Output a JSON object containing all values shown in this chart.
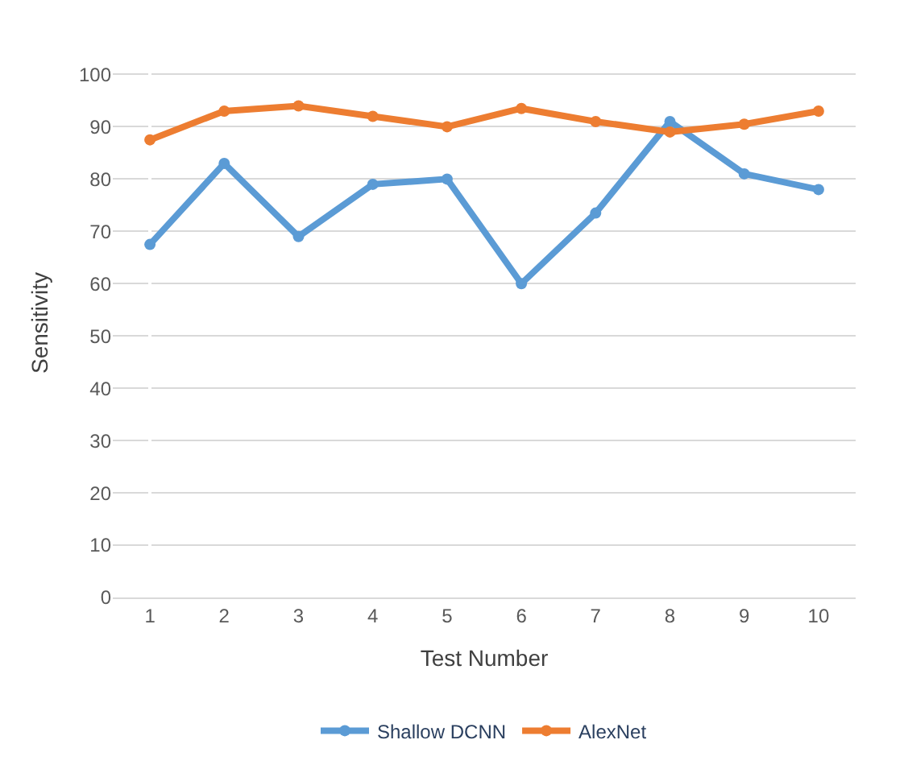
{
  "chart_data": {
    "type": "line",
    "xlabel": "Test Number",
    "ylabel": "Sensitivity",
    "categories": [
      "1",
      "2",
      "3",
      "4",
      "5",
      "6",
      "7",
      "8",
      "9",
      "10"
    ],
    "series": [
      {
        "name": "Shallow DCNN",
        "color": "#5b9bd5",
        "values": [
          67.5,
          83,
          69,
          79,
          80,
          60,
          73.5,
          91,
          81,
          78
        ]
      },
      {
        "name": "AlexNet",
        "color": "#ed7d31",
        "values": [
          87.5,
          93,
          94,
          92,
          90,
          93.5,
          91,
          89,
          90.5,
          93
        ]
      }
    ],
    "ylim": [
      0,
      105
    ],
    "yticks": [
      0,
      10,
      20,
      30,
      40,
      50,
      60,
      70,
      80,
      90,
      100
    ],
    "grid": "y",
    "legend": "bottom",
    "marker": "circle",
    "line_style": "solid"
  }
}
